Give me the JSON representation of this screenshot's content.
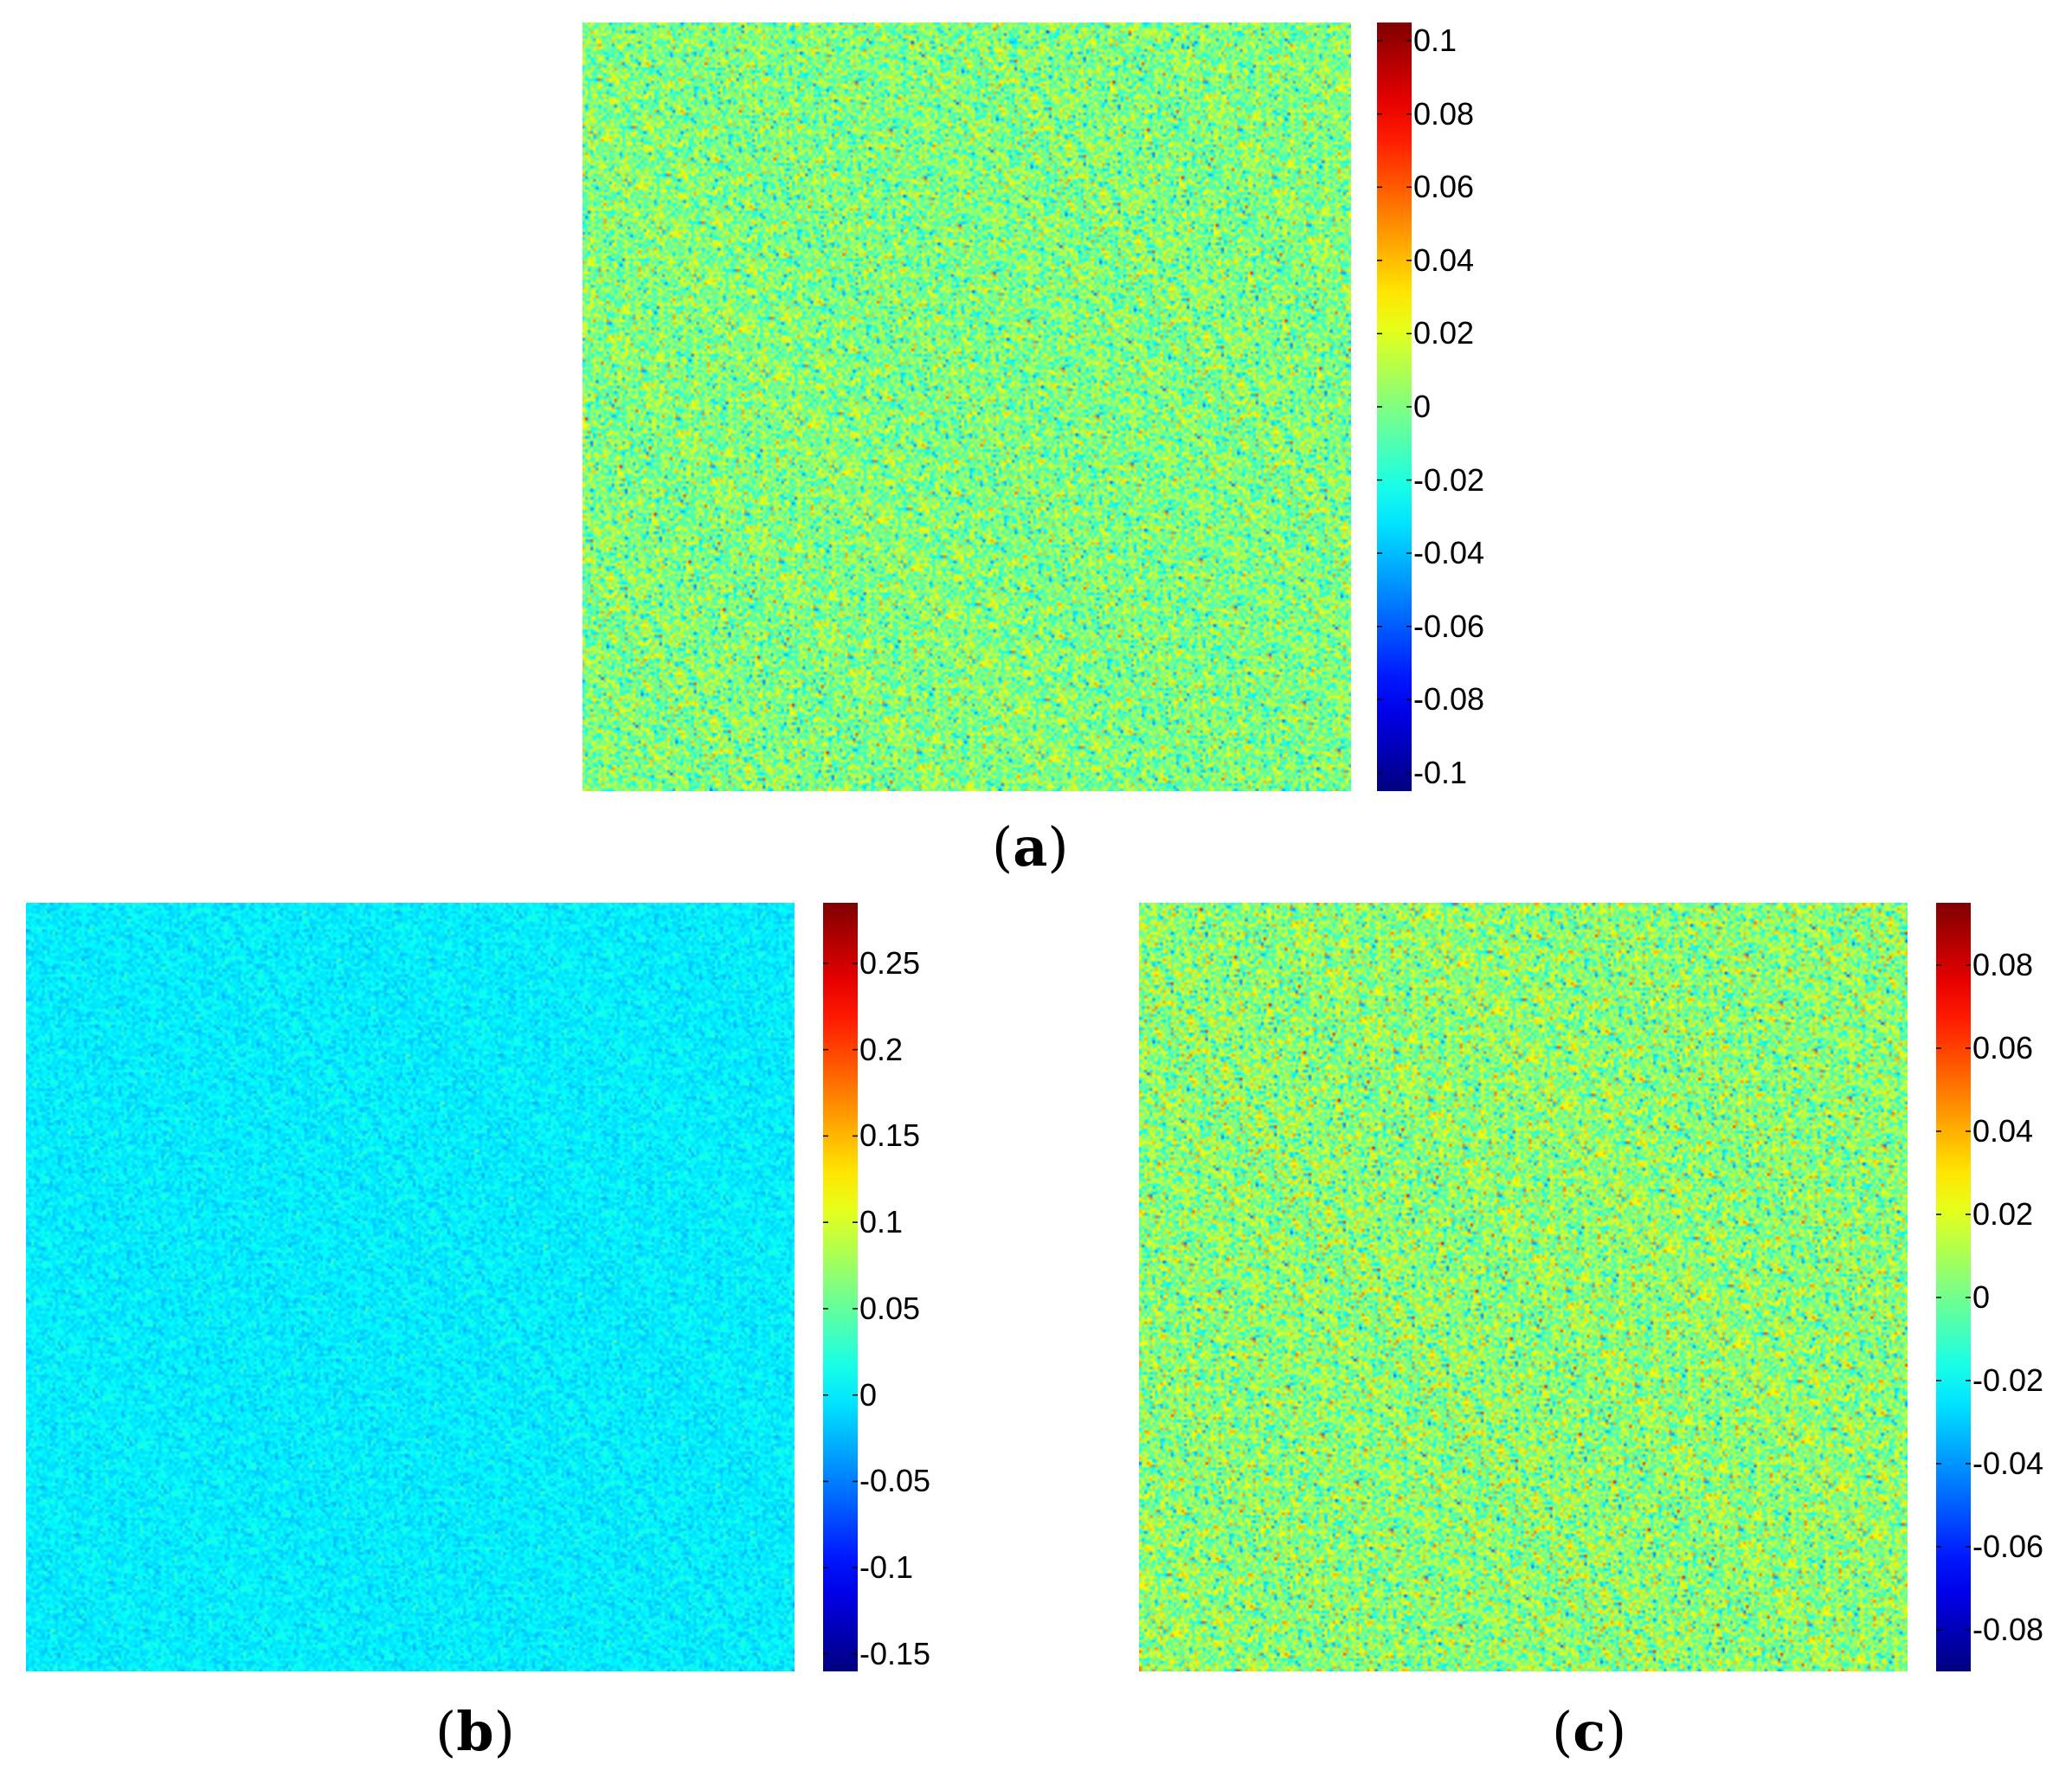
{
  "chart_data": [
    {
      "type": "heatmap",
      "panel_label": "a",
      "caption": {
        "open": "(",
        "letter": "a",
        "close": ")"
      },
      "colormap": "jet",
      "grid": false,
      "colorbar": {
        "position": "right",
        "min": -0.105,
        "max": 0.105,
        "ticks": [
          0.1,
          0.08,
          0.06,
          0.04,
          0.02,
          0,
          -0.02,
          -0.04,
          -0.06,
          -0.08,
          -0.1
        ],
        "tick_labels": [
          "0.1",
          "0.08",
          "0.06",
          "0.04",
          "0.02",
          "0",
          "-0.02",
          "-0.04",
          "-0.06",
          "-0.08",
          "-0.1"
        ]
      },
      "field": {
        "mean": 0.0,
        "noise_sd": 0.018
      }
    },
    {
      "type": "heatmap",
      "panel_label": "b",
      "caption": {
        "open": "(",
        "letter": "b",
        "close": ")"
      },
      "colormap": "jet",
      "grid": false,
      "colorbar": {
        "position": "right",
        "min": -0.16,
        "max": 0.285,
        "ticks": [
          0.25,
          0.2,
          0.15,
          0.1,
          0.05,
          0,
          -0.05,
          -0.1,
          -0.15
        ],
        "tick_labels": [
          "0.25",
          "0.2",
          "0.15",
          "0.1",
          "0.05",
          "0",
          "-0.05",
          "-0.1",
          "-0.15"
        ]
      },
      "field": {
        "mean": 0.0,
        "noise_sd": 0.012
      }
    },
    {
      "type": "heatmap",
      "panel_label": "c",
      "caption": {
        "open": "(",
        "letter": "c",
        "close": ")"
      },
      "colormap": "jet",
      "grid": false,
      "colorbar": {
        "position": "right",
        "min": -0.09,
        "max": 0.095,
        "ticks": [
          0.08,
          0.06,
          0.04,
          0.02,
          0,
          -0.02,
          -0.04,
          -0.06,
          -0.08
        ],
        "tick_labels": [
          "0.08",
          "0.06",
          "0.04",
          "0.02",
          "0",
          "-0.02",
          "-0.04",
          "-0.06",
          "-0.08"
        ]
      },
      "field": {
        "mean": 0.005,
        "noise_sd": 0.017
      }
    }
  ]
}
